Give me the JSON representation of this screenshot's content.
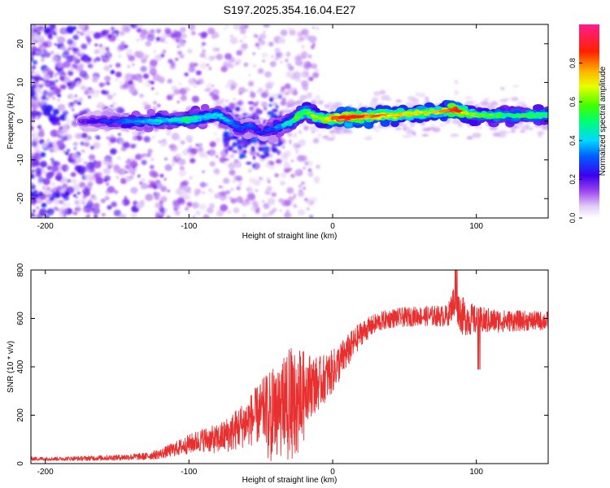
{
  "title": "S197.2025.354.16.04.E27",
  "chart_data": [
    {
      "type": "heatmap",
      "xlabel": "Height of straight line (km)",
      "ylabel": "Frequency (Hz)",
      "xlim": [
        -210,
        150
      ],
      "ylim": [
        -25,
        25
      ],
      "xticks": [
        -200,
        -100,
        0,
        100
      ],
      "yticks": [
        -20,
        -10,
        0,
        10,
        20
      ],
      "colorbar": {
        "label": "Normalized spectral amplitude",
        "range": [
          0,
          1
        ],
        "ticks": [
          "0.0",
          "0.2",
          "0.4",
          "0.6",
          "0.8"
        ],
        "tick_values": [
          0.0,
          0.2,
          0.4,
          0.6,
          0.8
        ]
      },
      "ridge": {
        "description": "dominant frequency (Hz) vs height (km) with peak normalized amplitude",
        "x": [
          -170,
          -150,
          -130,
          -110,
          -100,
          -90,
          -80,
          -72,
          -65,
          -58,
          -50,
          -42,
          -35,
          -28,
          -22,
          -18,
          -12,
          -5,
          0,
          10,
          20,
          40,
          60,
          75,
          85,
          92,
          100,
          120,
          140,
          150
        ],
        "freq": [
          0,
          0,
          0,
          0.3,
          0.5,
          1,
          1.5,
          0,
          -2,
          -1,
          -3,
          -2,
          -1,
          0,
          2,
          2.5,
          1,
          0.5,
          0.8,
          1,
          1.2,
          1.5,
          2,
          2.5,
          3,
          2,
          1.5,
          1.5,
          1.5,
          1.5
        ],
        "amp": [
          0.2,
          0.3,
          0.4,
          0.45,
          0.55,
          0.4,
          0.45,
          0.35,
          0.3,
          0.3,
          0.25,
          0.3,
          0.4,
          0.5,
          0.6,
          0.55,
          0.65,
          0.7,
          0.85,
          1.0,
          0.85,
          0.75,
          0.7,
          0.7,
          1.0,
          0.7,
          0.6,
          0.55,
          0.55,
          0.5
        ]
      }
    },
    {
      "type": "line",
      "xlabel": "Height of straight line (km)",
      "ylabel": "SNR (10 * v/v)",
      "xlim": [
        -210,
        150
      ],
      "ylim": [
        0,
        800
      ],
      "xticks": [
        -200,
        -100,
        0,
        100
      ],
      "yticks": [
        0,
        200,
        400,
        600,
        800
      ],
      "series": [
        {
          "name": "SNR",
          "color": "#e83030",
          "x": [
            -210,
            -190,
            -170,
            -150,
            -130,
            -120,
            -110,
            -100,
            -90,
            -80,
            -70,
            -60,
            -50,
            -40,
            -30,
            -20,
            -10,
            0,
            10,
            20,
            30,
            40,
            60,
            80,
            85,
            90,
            100,
            120,
            140,
            150
          ],
          "y": [
            20,
            20,
            22,
            25,
            30,
            40,
            60,
            80,
            100,
            100,
            130,
            170,
            210,
            250,
            280,
            320,
            330,
            380,
            460,
            540,
            580,
            600,
            610,
            610,
            680,
            610,
            590,
            590,
            590,
            590
          ],
          "noise_amplitude": [
            8,
            8,
            10,
            12,
            15,
            20,
            30,
            40,
            50,
            60,
            80,
            100,
            130,
            170,
            200,
            150,
            110,
            90,
            70,
            50,
            40,
            40,
            40,
            45,
            70,
            80,
            60,
            45,
            40,
            40
          ]
        }
      ]
    }
  ]
}
